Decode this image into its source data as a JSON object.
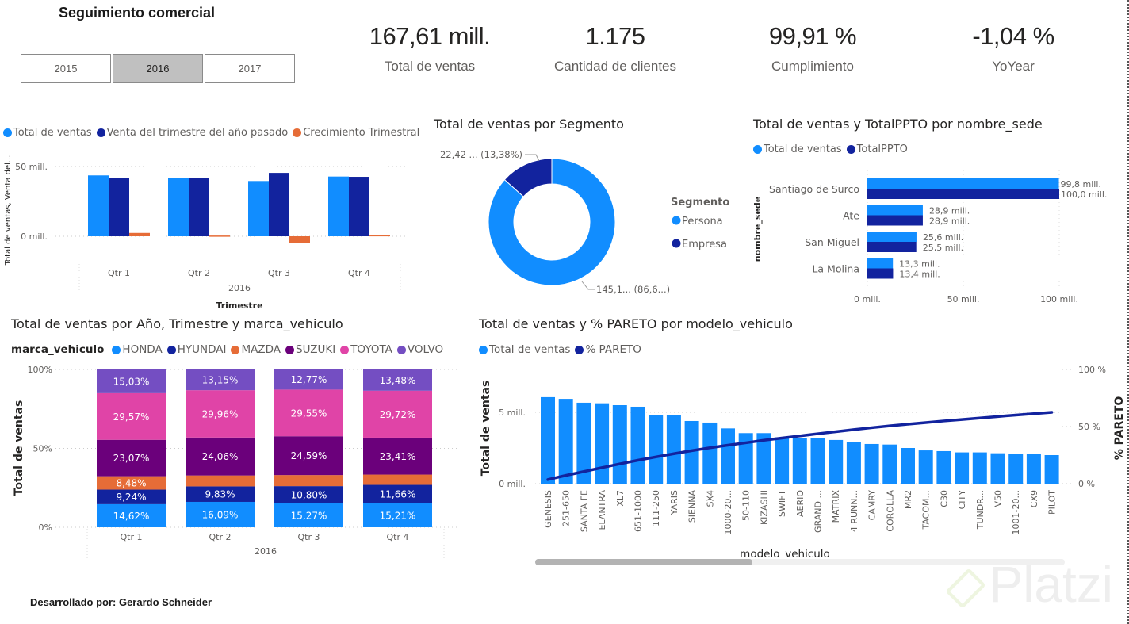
{
  "header": {
    "title": "Seguimiento comercial",
    "slicer": [
      {
        "label": "2015",
        "selected": false
      },
      {
        "label": "2016",
        "selected": true
      },
      {
        "label": "2017",
        "selected": false
      }
    ]
  },
  "kpis": [
    {
      "value": "167,61 mill.",
      "label": "Total de ventas"
    },
    {
      "value": "1.175",
      "label": "Cantidad de clientes"
    },
    {
      "value": "99,91 %",
      "label": "Cumplimiento"
    },
    {
      "value": "-1,04 %",
      "label": "YoYear"
    }
  ],
  "colors": {
    "light_blue": "#118DFF",
    "dark_blue": "#12239E",
    "orange": "#E66C37",
    "purple_dark": "#6B007B",
    "pink": "#E044A7",
    "violet": "#744EC2"
  },
  "footer": {
    "text": "Desarrollado por: Gerardo Schneider",
    "watermark": "Platzi"
  },
  "chart_data": [
    {
      "id": "quarterly",
      "type": "bar",
      "title": "",
      "legend": [
        "Total de ventas",
        "Venta del trimestre del año pasado",
        "Crecimiento Trimestral"
      ],
      "legend_position": "top-left",
      "categories": [
        "Qtr 1",
        "Qtr 2",
        "Qtr 3",
        "Qtr 4"
      ],
      "group_label": "2016",
      "xlabel": "Trimestre",
      "ylabel": "Total de ventas, Venta del...",
      "yticks": [
        "0 mill.",
        "50 mill."
      ],
      "ylim": [
        -10,
        55
      ],
      "series": [
        {
          "name": "Total de ventas",
          "values": [
            43.6,
            41.6,
            39.6,
            42.8
          ]
        },
        {
          "name": "Venta del trimestre del año pasado",
          "values": [
            41.8,
            41.5,
            45.4,
            42.6
          ]
        },
        {
          "name": "Crecimiento Trimestral",
          "values": [
            2.4,
            0.5,
            -4.8,
            0.8
          ]
        }
      ]
    },
    {
      "id": "segment",
      "type": "pie",
      "title": "Total de ventas por Segmento",
      "legend_title": "Segmento",
      "legend_position": "right",
      "categories": [
        "Persona",
        "Empresa"
      ],
      "values": [
        145.19,
        22.42
      ],
      "percent": [
        86.62,
        13.38
      ],
      "labels": [
        "145,1... (86,6...)",
        "22,42 ... (13,38%)"
      ]
    },
    {
      "id": "sede",
      "type": "bar",
      "orientation": "horizontal",
      "title": "Total de ventas y TotalPPTO por nombre_sede",
      "legend": [
        "Total de ventas",
        "TotalPPTO"
      ],
      "legend_position": "top-left",
      "ylabel": "nombre_sede",
      "categories": [
        "Santiago de Surco",
        "Ate",
        "San Miguel",
        "La Molina"
      ],
      "xticks": [
        "0 mill.",
        "50 mill.",
        "100 mill."
      ],
      "xlim": [
        0,
        100
      ],
      "series": [
        {
          "name": "Total de ventas",
          "values": [
            99.8,
            28.9,
            25.6,
            13.3
          ],
          "labels": [
            "99,8 mill.",
            "28,9 mill.",
            "25,6 mill.",
            "13,3 mill."
          ]
        },
        {
          "name": "TotalPPTO",
          "values": [
            100.0,
            28.9,
            25.5,
            13.4
          ],
          "labels": [
            "100,0 mill.",
            "28,9 mill.",
            "25,5 mill.",
            "13,4 mill."
          ]
        }
      ]
    },
    {
      "id": "brand",
      "type": "bar",
      "stacked": "100%",
      "title": "Total de ventas por Año, Trimestre y marca_vehiculo",
      "legend_title": "marca_vehiculo",
      "legend": [
        "HONDA",
        "HYUNDAI",
        "MAZDA",
        "SUZUKI",
        "TOYOTA",
        "VOLVO"
      ],
      "legend_position": "top-left",
      "categories": [
        "Qtr 1",
        "Qtr 2",
        "Qtr 3",
        "Qtr 4"
      ],
      "group_label": "2016",
      "ylabel": "Total de ventas",
      "yticks": [
        "0%",
        "50%",
        "100%"
      ],
      "ylim": [
        0,
        100
      ],
      "series": [
        {
          "name": "HONDA",
          "values": [
            14.62,
            16.09,
            15.27,
            15.21
          ],
          "labels": [
            "14,62%",
            "16,09%",
            "15,27%",
            "15,21%"
          ]
        },
        {
          "name": "HYUNDAI",
          "values": [
            9.24,
            9.83,
            10.8,
            11.66
          ],
          "labels": [
            "9,24%",
            "9,83%",
            "10,80%",
            "11,66%"
          ]
        },
        {
          "name": "MAZDA",
          "values": [
            8.48,
            6.91,
            7.02,
            6.52
          ],
          "labels": [
            "8,48%",
            "",
            "",
            ""
          ]
        },
        {
          "name": "SUZUKI",
          "values": [
            23.07,
            24.06,
            24.59,
            23.41
          ],
          "labels": [
            "23,07%",
            "24,06%",
            "24,59%",
            "23,41%"
          ]
        },
        {
          "name": "TOYOTA",
          "values": [
            29.57,
            29.96,
            29.55,
            29.72
          ],
          "labels": [
            "29,57%",
            "29,96%",
            "29,55%",
            "29,72%"
          ]
        },
        {
          "name": "VOLVO",
          "values": [
            15.03,
            13.15,
            12.77,
            13.48
          ],
          "labels": [
            "15,03%",
            "13,15%",
            "12,77%",
            "13,48%"
          ]
        }
      ]
    },
    {
      "id": "pareto",
      "type": "bar",
      "title": "Total de ventas y % PARETO por modelo_vehiculo",
      "legend": [
        "Total de ventas",
        "% PARETO"
      ],
      "legend_position": "top-left",
      "xlabel": "modelo_vehiculo",
      "ylabel": "Total de ventas",
      "ylabel_right": "% PARETO",
      "yticks": [
        "0 mill.",
        "5 mill."
      ],
      "yticks_right": [
        "0 %",
        "50 %",
        "100 %"
      ],
      "ylim": [
        0,
        8
      ],
      "ylim_right": [
        0,
        100
      ],
      "categories": [
        "GENESIS",
        "251-650",
        "SANTA FE",
        "ELANTRA",
        "XL7",
        "651-1000",
        "111-250",
        "YARIS",
        "SIENNA",
        "SX4",
        "1000-20...",
        "50-110",
        "KIZASHI",
        "SWIFT",
        "AERIO",
        "GRAND ...",
        "MATRIX",
        "4 RUNN...",
        "CAMRY",
        "COROLLA",
        "MR2",
        "TACOM...",
        "C30",
        "CITY",
        "TUNDR...",
        "V50",
        "1001-20...",
        "CX9",
        "PILOT"
      ],
      "series": [
        {
          "name": "Total de ventas",
          "values": [
            6.06,
            5.94,
            5.67,
            5.63,
            5.5,
            5.39,
            4.78,
            4.78,
            4.39,
            4.28,
            3.87,
            3.54,
            3.54,
            3.24,
            3.22,
            3.17,
            3.06,
            2.94,
            2.78,
            2.74,
            2.5,
            2.33,
            2.28,
            2.19,
            2.19,
            2.13,
            2.11,
            2.07,
            2.0
          ]
        },
        {
          "name": "% PARETO",
          "values": [
            3.6,
            7.2,
            10.6,
            14.0,
            17.3,
            20.5,
            23.4,
            26.2,
            28.9,
            31.4,
            33.7,
            35.8,
            38.0,
            39.9,
            41.8,
            43.7,
            45.5,
            47.3,
            49.0,
            50.6,
            52.1,
            53.5,
            54.9,
            56.2,
            57.5,
            58.8,
            60.1,
            61.3,
            62.5
          ]
        }
      ],
      "scroll_position": 0.41
    }
  ]
}
